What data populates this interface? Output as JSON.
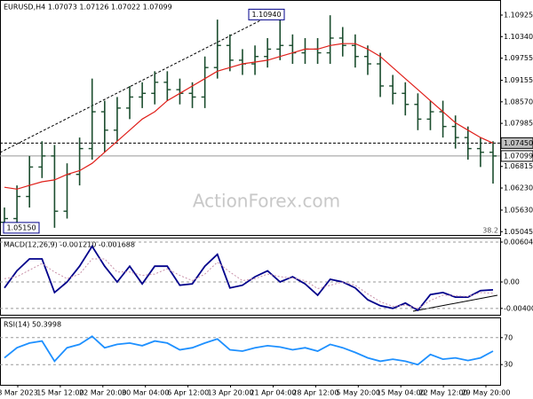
{
  "chart_data": [
    {
      "type": "candlestick",
      "title": "EURUSD,H4  1.07073 1.07126 1.07022 1.07099",
      "color": "#1b4d2e",
      "open": [
        1.053,
        1.054,
        1.06,
        1.068,
        1.071,
        1.056,
        1.066,
        1.073,
        1.083,
        1.078,
        1.084,
        1.087,
        1.088,
        1.091,
        1.089,
        1.088,
        1.087,
        1.095,
        1.101,
        1.097,
        1.096,
        1.098,
        1.1,
        1.101,
        1.099,
        1.1,
        1.099,
        1.103,
        1.101,
        1.098,
        1.096,
        1.09,
        1.088,
        1.085,
        1.081,
        1.083,
        1.079,
        1.076,
        1.073,
        1.072
      ],
      "high": [
        1.057,
        1.063,
        1.071,
        1.075,
        1.074,
        1.069,
        1.076,
        1.092,
        1.086,
        1.087,
        1.09,
        1.091,
        1.094,
        1.094,
        1.092,
        1.091,
        1.098,
        1.108,
        1.104,
        1.1,
        1.101,
        1.103,
        1.1094,
        1.104,
        1.103,
        1.103,
        1.1092,
        1.106,
        1.104,
        1.101,
        1.099,
        1.093,
        1.091,
        1.088,
        1.086,
        1.086,
        1.082,
        1.079,
        1.076,
        1.075
      ],
      "low": [
        1.052,
        1.0525,
        1.057,
        1.065,
        1.0515,
        1.054,
        1.063,
        1.07,
        1.072,
        1.075,
        1.081,
        1.084,
        1.085,
        1.086,
        1.085,
        1.084,
        1.084,
        1.092,
        1.094,
        1.093,
        1.093,
        1.095,
        1.097,
        1.096,
        1.096,
        1.096,
        1.096,
        1.098,
        1.095,
        1.093,
        1.087,
        1.085,
        1.082,
        1.078,
        1.078,
        1.076,
        1.073,
        1.07,
        1.068,
        1.0635
      ],
      "close": [
        1.054,
        1.06,
        1.068,
        1.071,
        1.056,
        1.066,
        1.073,
        1.083,
        1.078,
        1.084,
        1.087,
        1.088,
        1.091,
        1.089,
        1.088,
        1.087,
        1.095,
        1.101,
        1.097,
        1.096,
        1.098,
        1.1,
        1.101,
        1.099,
        1.1,
        1.099,
        1.103,
        1.101,
        1.098,
        1.096,
        1.09,
        1.088,
        1.085,
        1.081,
        1.083,
        1.079,
        1.076,
        1.073,
        1.072,
        1.071
      ],
      "series": [
        {
          "color": "#e0201b",
          "values": [
            1.0625,
            1.062,
            1.063,
            1.064,
            1.0645,
            1.066,
            1.067,
            1.069,
            1.072,
            1.075,
            1.078,
            1.081,
            1.083,
            1.086,
            1.088,
            1.09,
            1.092,
            1.094,
            1.095,
            1.096,
            1.0965,
            1.097,
            1.098,
            1.099,
            1.1,
            1.1,
            1.101,
            1.1015,
            1.1015,
            1.1,
            1.098,
            1.095,
            1.092,
            1.089,
            1.086,
            1.083,
            1.08,
            1.078,
            1.076,
            1.0745
          ]
        }
      ],
      "ylim": [
        1.04955,
        1.11334
      ],
      "yticks": [
        1.10925,
        {
          "value": 1.1034,
          "label": "1.10340"
        },
        1.09755,
        1.09155,
        {
          "value": 1.0857,
          "label": "1.08570"
        },
        1.07985,
        1.06815,
        {
          "value": 1.0623,
          "label": "1.06230"
        },
        {
          "value": 1.0563,
          "label": "1.05630"
        },
        1.05045
      ],
      "price_lines": [
        {
          "value": 1.0745,
          "label": "1.07450"
        },
        {
          "value": 1.07099,
          "label": "1.07099"
        }
      ],
      "annotations": [
        {
          "value": 1.1094,
          "label": "1.10940"
        },
        {
          "value": 1.0515,
          "label": "1.05150"
        }
      ],
      "fib_label": 38.2,
      "watermark": "ActionForex.com"
    },
    {
      "type": "line",
      "title": "MACD(12,26,9) -0.001210 -0.001688",
      "series": [
        {
          "color": "#00008b",
          "values": [
            -0.0009,
            0.0017,
            0.0035,
            0.0035,
            -0.0016,
            0,
            0.0024,
            0.0054,
            0.0024,
            0,
            0.0024,
            -0.0003,
            0.0024,
            0.0024,
            -0.0005,
            -0.0003,
            0.0024,
            0.0042,
            -0.0009,
            -0.0005,
            0.0008,
            0.0017,
            0,
            0.0008,
            -0.0003,
            -0.002,
            0.0004,
            0,
            -0.0009,
            -0.0027,
            -0.0036,
            -0.004,
            -0.0032,
            -0.0043,
            -0.0019,
            -0.0016,
            -0.0023,
            -0.0023,
            -0.0013,
            -0.0012
          ]
        },
        {
          "color": "#c890a8",
          "values": [
            0.0005,
            0.0008,
            0.0018,
            0.0028,
            0.0015,
            0.0005,
            0.0012,
            0.0035,
            0.0035,
            0.0015,
            0.0015,
            0.001,
            0.0012,
            0.002,
            0.001,
            0.0002,
            0.0012,
            0.003,
            0.0015,
            0.0002,
            0.0005,
            0.0012,
            0.0008,
            0.0006,
            0.0002,
            -0.001,
            -0.0005,
            0,
            -0.0005,
            -0.0018,
            -0.003,
            -0.0037,
            -0.0035,
            -0.004,
            -0.0028,
            -0.002,
            -0.0021,
            -0.0022,
            -0.0016,
            -0.0017
          ]
        }
      ],
      "ylim": [
        -0.00497,
        0.00672
      ],
      "yticks": [
        0.006049,
        {
          "value": 0,
          "label": "0.00"
        },
        -0.004005
      ]
    },
    {
      "type": "line",
      "title": "RSI(14) 50.3998",
      "series": [
        {
          "color": "#1e90ff",
          "values": [
            40,
            55,
            62,
            65,
            35,
            55,
            60,
            72,
            55,
            60,
            62,
            58,
            65,
            62,
            52,
            55,
            62,
            68,
            52,
            50,
            55,
            58,
            56,
            52,
            55,
            50,
            60,
            55,
            48,
            40,
            35,
            38,
            35,
            30,
            45,
            38,
            40,
            36,
            40,
            50
          ]
        }
      ],
      "ylim": [
        0,
        100
      ],
      "yticks": [
        30,
        70
      ]
    }
  ],
  "x_axis": {
    "labels": [
      "8 Mar 2023",
      "15 Mar 12:00",
      "22 Mar 20:00",
      "30 Mar 04:00",
      "6 Apr 12:00",
      "13 Apr 20:00",
      "21 Apr 04:00",
      "28 Apr 12:00",
      "5 May 20:00",
      "15 May 04:00",
      "22 May 12:00",
      "29 May 20:00"
    ]
  }
}
